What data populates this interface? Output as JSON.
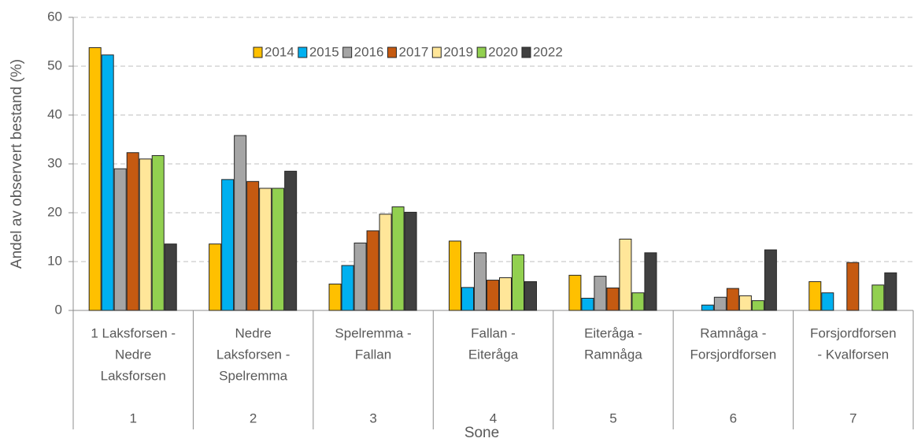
{
  "chart_data": {
    "type": "bar",
    "y_label": "Andel av observert bestand (%)",
    "x_label": "Sone",
    "categories": [
      "1",
      "2",
      "3",
      "4",
      "5",
      "6",
      "7"
    ],
    "category_names": [
      [
        "1 Laksforsen -",
        "Nedre",
        "Laksforsen"
      ],
      [
        "Nedre",
        "Laksforsen -",
        "Spelremma"
      ],
      [
        "Spelremma -",
        "Fallan"
      ],
      [
        "Fallan -",
        "Eiteråga"
      ],
      [
        "Eiteråga -",
        "Ramnåga"
      ],
      [
        "Ramnåga -",
        "Forsjordforsen"
      ],
      [
        "Forsjordforsen",
        "- Kvalforsen"
      ]
    ],
    "series": [
      {
        "name": "2014",
        "color": "#ffc000",
        "values": [
          53.8,
          13.6,
          5.4,
          14.2,
          7.2,
          null,
          5.9
        ]
      },
      {
        "name": "2015",
        "color": "#00b0f0",
        "values": [
          52.3,
          26.8,
          9.2,
          4.7,
          2.5,
          1.1,
          3.6
        ]
      },
      {
        "name": "2016",
        "color": "#a5a5a5",
        "values": [
          29.0,
          35.8,
          13.8,
          11.8,
          7.0,
          2.7,
          null
        ]
      },
      {
        "name": "2017",
        "color": "#c55a11",
        "values": [
          32.3,
          26.4,
          16.3,
          6.2,
          4.6,
          4.5,
          9.8
        ]
      },
      {
        "name": "2019",
        "color": "#ffe699",
        "values": [
          31.0,
          25.0,
          19.7,
          6.7,
          14.6,
          3.0,
          null
        ]
      },
      {
        "name": "2020",
        "color": "#92d050",
        "values": [
          31.7,
          25.0,
          21.2,
          11.4,
          3.6,
          2.0,
          5.2
        ]
      },
      {
        "name": "2022",
        "color": "#404040",
        "values": [
          13.6,
          28.5,
          20.1,
          5.9,
          11.8,
          12.4,
          7.7
        ]
      }
    ],
    "ylim": [
      0,
      60
    ],
    "yticks": [
      0,
      10,
      20,
      30,
      40,
      50,
      60
    ],
    "grid": true,
    "legend": "top"
  }
}
